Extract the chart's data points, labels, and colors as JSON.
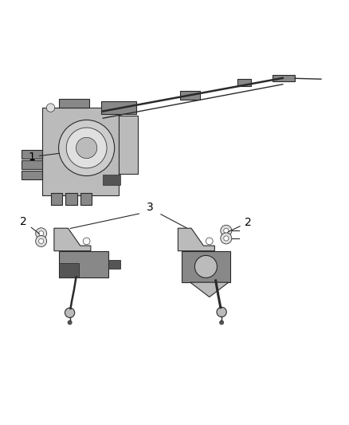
{
  "background_color": "#ffffff",
  "fig_width": 4.38,
  "fig_height": 5.33,
  "dpi": 100,
  "label1": "1",
  "label2": "2",
  "label3": "3",
  "line_color": "#2a2a2a",
  "part_color": "#888888",
  "part_color_light": "#bbbbbb",
  "part_color_dark": "#555555",
  "lw": 0.8
}
